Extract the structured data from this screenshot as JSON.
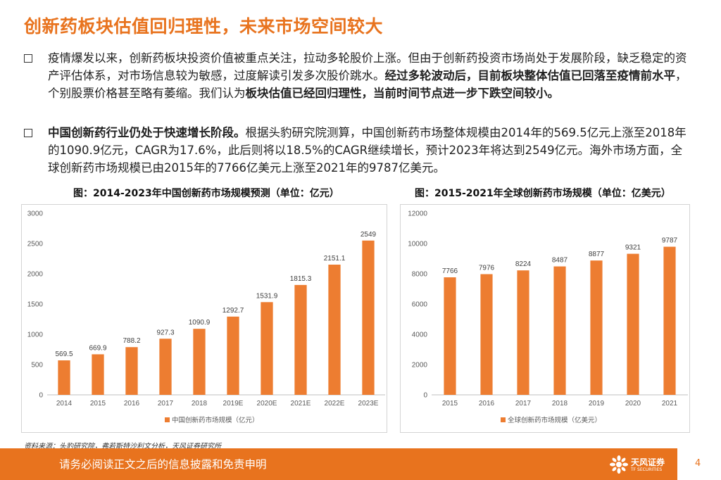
{
  "title": "创新药板块估值回归理性，未来市场空间较大",
  "bullet1": {
    "p1": "疫情爆发以来，创新药板块投资价值被重点关注，拉动多轮股价上涨。但由于创新药投资市场尚处于发展阶段，缺乏稳定的资产评估体系，对市场信息较为敏感，过度解读引发多次股价跳水。",
    "b1": "经过多轮波动后，目前板块整体估值已回落至疫情前水平",
    "p2": "，个别股票价格甚至略有萎缩。我们认为",
    "b2": "板块估值已经回归理性，当前时间节点进一步下跌空间较小。"
  },
  "bullet2": {
    "b1": "中国创新药行业仍处于快速增长阶段。",
    "p1": "根据头豹研究院测算，中国创新药市场整体规模由2014年的569.5亿元上涨至2018年的1090.9亿元，CAGR为17.6%，此后则将以18.5%的CAGR继续增长，预计2023年将达到2549亿元。海外市场方面，全球创新药市场规模已由2015年的7766亿美元上涨至2021年的9787亿美元。"
  },
  "chart_data": [
    {
      "type": "bar",
      "title": "图：2014-2023年中国创新药市场规模预测（单位：亿元）",
      "categories": [
        "2014",
        "2015",
        "2016",
        "2017",
        "2018",
        "2019E",
        "2020E",
        "2021E",
        "2022E",
        "2023E"
      ],
      "values": [
        569.5,
        669.9,
        788.2,
        927.3,
        1090.9,
        1292.7,
        1531.9,
        1815.3,
        2151.1,
        2549
      ],
      "labels": [
        "569.5",
        "669.9",
        "788.2",
        "927.3",
        "1090.9",
        "1292.7",
        "1531.9",
        "1815.3",
        "2151.1",
        "2549"
      ],
      "ylim": [
        0,
        3000
      ],
      "yticks": [
        0,
        500,
        1000,
        1500,
        2000,
        2500,
        3000
      ],
      "ytick_labels": [
        "0",
        "500",
        "1000",
        "1500",
        "2000",
        "2500",
        "3000"
      ],
      "legend": "中国创新药市场规模（亿元）",
      "legend_position": "bottom",
      "color": "#ED7D31"
    },
    {
      "type": "bar",
      "title": "图：2015-2021年全球创新药市场规模（单位：亿美元）",
      "categories": [
        "2015",
        "2016",
        "2017",
        "2018",
        "2019",
        "2020",
        "2021"
      ],
      "values": [
        7766,
        7976,
        8224,
        8487,
        8877,
        9321,
        9787
      ],
      "labels": [
        "7766",
        "7976",
        "8224",
        "8487",
        "8877",
        "9321",
        "9787"
      ],
      "ylim": [
        0,
        12000
      ],
      "yticks": [
        0,
        2000,
        4000,
        6000,
        8000,
        10000,
        12000
      ],
      "ytick_labels": [
        "0",
        "2000",
        "4000",
        "6000",
        "8000",
        "10000",
        "12000"
      ],
      "legend": "全球创新药市场规模（亿美元）",
      "legend_position": "bottom",
      "color": "#ED7D31"
    }
  ],
  "source": "资料来源：头豹研究院，弗若斯特沙利文分析，天风证券研究所",
  "footer": {
    "text": "请务必阅读正文之后的信息披露和免责申明",
    "logo_cn": "天风证券",
    "logo_en": "TF SECURITIES",
    "page": "4"
  }
}
